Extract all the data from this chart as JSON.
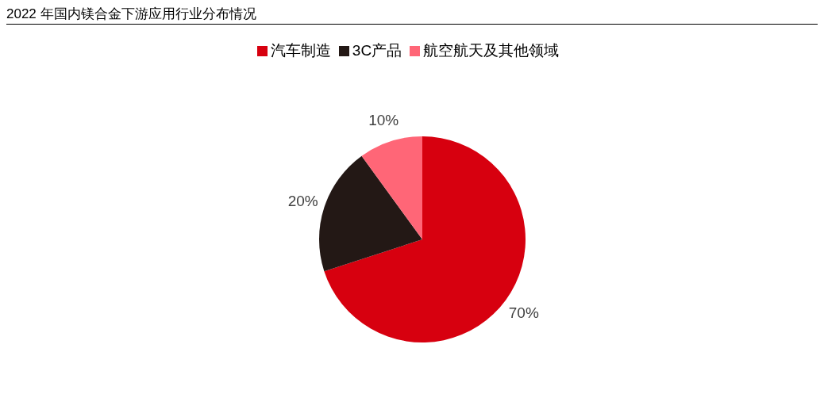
{
  "chart_data": {
    "type": "pie",
    "title": "2022 年国内镁合金下游应用行业分布情况",
    "categories": [
      "汽车制造",
      "3C产品",
      "航空航天及其他领域"
    ],
    "values": [
      70,
      20,
      10
    ],
    "colors": [
      "#d7000f",
      "#231815",
      "#ff6677"
    ],
    "value_labels": [
      "70%",
      "20%",
      "10%"
    ],
    "legend": "top"
  }
}
